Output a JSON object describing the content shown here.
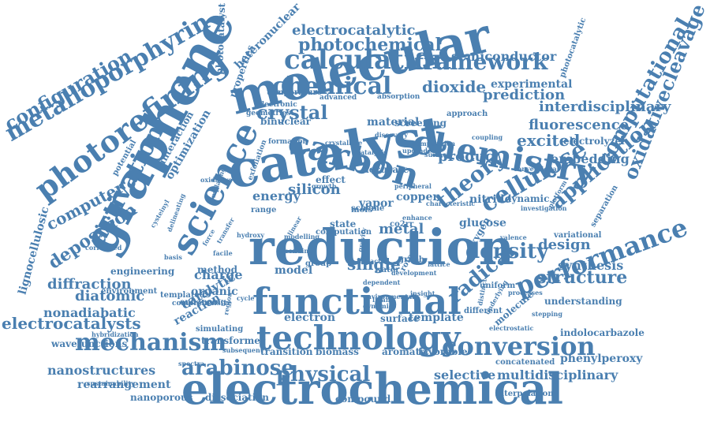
{
  "cloud": {
    "color": "#4a7fb0",
    "words": [
      "electrochemical",
      "reduction",
      "molecular",
      "catalyst",
      "graphene",
      "functional",
      "technology",
      "chemistry",
      "carbon",
      "science",
      "mechanism",
      "conversion",
      "photorefining",
      "metalloporphyrin",
      "calculation",
      "chemical",
      "framework",
      "photochemical",
      "electrocatalytic",
      "semiconductor",
      "crystal",
      "dioxide",
      "prediction",
      "interdisciplinary",
      "fluorescence",
      "excited",
      "embedding",
      "product",
      "theory",
      "density",
      "cellulose",
      "design",
      "application",
      "computational",
      "oxidativecleavage",
      "performance",
      "radical",
      "structure",
      "synthesis",
      "arabinose",
      "physical",
      "multidisciplinary",
      "selective",
      "phenylperoxy",
      "indolocarbazole",
      "configuration",
      "activation",
      "computer",
      "deposition",
      "diffraction",
      "diatomic",
      "nonadiabatic",
      "electrocatalysts",
      "wavefunctions",
      "nanostructures",
      "rearrangement",
      "nanoporous",
      "dissociation",
      "compound",
      "interpolation",
      "lignocellulosic",
      "heteronuclear",
      "photocatalyst",
      "silicon",
      "energy",
      "metal",
      "single",
      "nitride",
      "glucose",
      "material",
      "binuclear",
      "screening",
      "experimental",
      "electrolyzer",
      "properties",
      "template",
      "surface",
      "electron",
      "transition",
      "biomass",
      "aromatic",
      "favorable",
      "concatenated",
      "understanding",
      "catalytic",
      "reaction",
      "transformer",
      "organic",
      "charge",
      "model",
      "method",
      "engineering",
      "approach",
      "photocatalytic",
      "temperature",
      "electronic",
      "geometries",
      "advanced",
      "absorption",
      "accurate",
      "vapor",
      "copper",
      "dynamic",
      "variational",
      "separation",
      "molecule",
      "oxygen",
      "effect",
      "state",
      "water",
      "graph",
      "range",
      "scheme",
      "group",
      "rotor",
      "uniform",
      "different",
      "simulating",
      "enhancing",
      "templated",
      "environment",
      "delineating",
      "formation",
      "crystalline",
      "coupling",
      "conventional",
      "optimization",
      "interaction",
      "templating",
      "exfoliation",
      "potential",
      "correlated",
      "hybridization",
      "sustainability",
      "comprehensive",
      "subsequent",
      "computation",
      "mofs",
      "co2rr",
      "impact",
      "force",
      "catalysis",
      "growth",
      "enhance",
      "valence",
      "stepping",
      "electrostatic",
      "underlying",
      "investigation",
      "development",
      "platform",
      "region",
      "environmental",
      "lattice",
      "distinct",
      "processes",
      "dependent",
      "insight",
      "surface",
      "linear",
      "spectra",
      "cycle",
      "basis",
      "oxidative",
      "discovery",
      "composition",
      "upgrade",
      "peripheral",
      "cysteinyl",
      "transfer",
      "hydroxy",
      "modelling",
      "bonding",
      "gravity",
      "facile",
      "ligand",
      "dynamics",
      "characteristic",
      "centre",
      "shell",
      "strategy"
    ]
  }
}
